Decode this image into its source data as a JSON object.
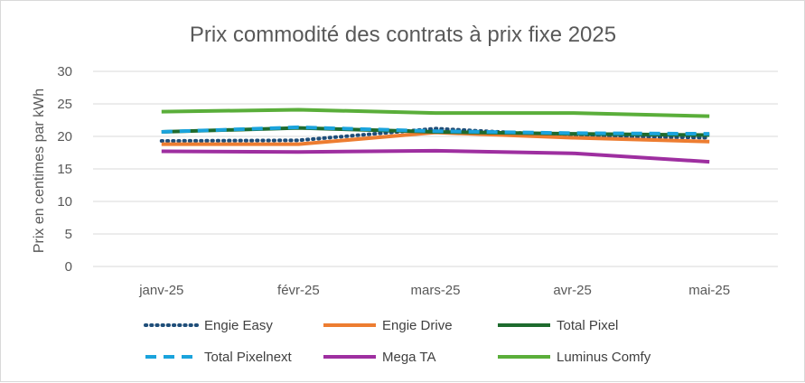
{
  "chart_data": {
    "type": "line",
    "title": "Prix commodité des contrats à prix fixe 2025",
    "xlabel": "",
    "ylabel": "Prix en centimes par kWh",
    "ylim": [
      0,
      30
    ],
    "yticks": [
      0,
      5,
      10,
      15,
      20,
      25,
      30
    ],
    "grid": true,
    "legend_position": "bottom",
    "categories": [
      "janv-25",
      "févr-25",
      "mars-25",
      "avr-25",
      "mai-25"
    ],
    "series": [
      {
        "name": "Engie Easy",
        "values": [
          19.3,
          19.4,
          21.2,
          20.1,
          19.8
        ],
        "color": "#1f4e79",
        "style": "dotted"
      },
      {
        "name": "Engie Drive",
        "values": [
          18.8,
          18.8,
          20.6,
          19.8,
          19.2
        ],
        "color": "#ed7d31",
        "style": "solid"
      },
      {
        "name": "Total Pixel",
        "values": [
          20.7,
          21.3,
          20.7,
          20.4,
          20.2
        ],
        "color": "#1e6b2e",
        "style": "solid"
      },
      {
        "name": "Total Pixelnext",
        "values": [
          20.7,
          21.4,
          20.8,
          20.5,
          20.4
        ],
        "color": "#1aa3dc",
        "style": "dashed"
      },
      {
        "name": "Mega TA",
        "values": [
          17.7,
          17.6,
          17.8,
          17.4,
          16.1
        ],
        "color": "#9e2fa0",
        "style": "solid"
      },
      {
        "name": "Luminus Comfy",
        "values": [
          23.8,
          24.1,
          23.6,
          23.6,
          23.1
        ],
        "color": "#5aae3a",
        "style": "solid"
      }
    ]
  }
}
